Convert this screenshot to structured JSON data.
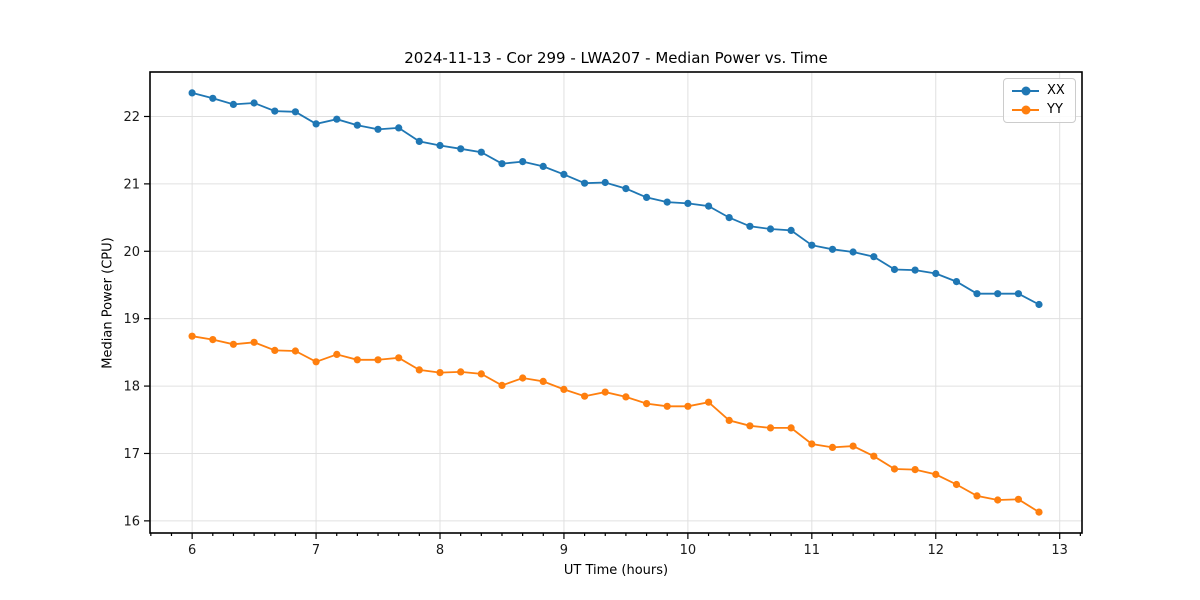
{
  "chart_data": {
    "type": "line",
    "title": "2024-11-13 - Cor 299 - LWA207 - Median Power vs. Time",
    "xlabel": "UT Time (hours)",
    "ylabel": "Median Power (CPU)",
    "xlim": [
      5.66,
      13.18
    ],
    "ylim": [
      15.82,
      22.66
    ],
    "x_ticks": [
      6,
      7,
      8,
      9,
      10,
      11,
      12,
      13
    ],
    "y_ticks": [
      16,
      17,
      18,
      19,
      20,
      21,
      22
    ],
    "x_minor_interval_hours": 0.1667,
    "grid": true,
    "legend_position": "upper right",
    "marker": "circle",
    "x": [
      6.0,
      6.167,
      6.333,
      6.5,
      6.667,
      6.833,
      7.0,
      7.167,
      7.333,
      7.5,
      7.667,
      7.833,
      8.0,
      8.167,
      8.333,
      8.5,
      8.667,
      8.833,
      9.0,
      9.167,
      9.333,
      9.5,
      9.667,
      9.833,
      10.0,
      10.167,
      10.333,
      10.5,
      10.667,
      10.833,
      11.0,
      11.167,
      11.333,
      11.5,
      11.667,
      11.833,
      12.0,
      12.167,
      12.333,
      12.5,
      12.667,
      12.833
    ],
    "series": [
      {
        "name": "XX",
        "color": "#1f77b4",
        "values": [
          22.35,
          22.27,
          22.18,
          22.2,
          22.08,
          22.07,
          21.89,
          21.96,
          21.87,
          21.81,
          21.83,
          21.63,
          21.57,
          21.52,
          21.47,
          21.3,
          21.33,
          21.26,
          21.14,
          21.01,
          21.02,
          20.93,
          20.8,
          20.73,
          20.71,
          20.67,
          20.5,
          20.37,
          20.33,
          20.31,
          20.09,
          20.03,
          19.99,
          19.92,
          19.73,
          19.72,
          19.67,
          19.55,
          19.37,
          19.37,
          19.37,
          19.21
        ]
      },
      {
        "name": "YY",
        "color": "#ff7f0e",
        "values": [
          18.74,
          18.69,
          18.62,
          18.65,
          18.53,
          18.52,
          18.36,
          18.47,
          18.39,
          18.39,
          18.42,
          18.24,
          18.2,
          18.21,
          18.18,
          18.01,
          18.12,
          18.07,
          17.95,
          17.85,
          17.91,
          17.84,
          17.74,
          17.7,
          17.7,
          17.76,
          17.49,
          17.41,
          17.38,
          17.38,
          17.14,
          17.09,
          17.11,
          16.96,
          16.77,
          16.76,
          16.69,
          16.54,
          16.37,
          16.31,
          16.32,
          16.13
        ]
      }
    ],
    "style": {
      "grid_color": "#e0e0e0",
      "spine_color": "#000000",
      "tick_label_color": "#1a1a1a",
      "background": "#ffffff"
    }
  }
}
